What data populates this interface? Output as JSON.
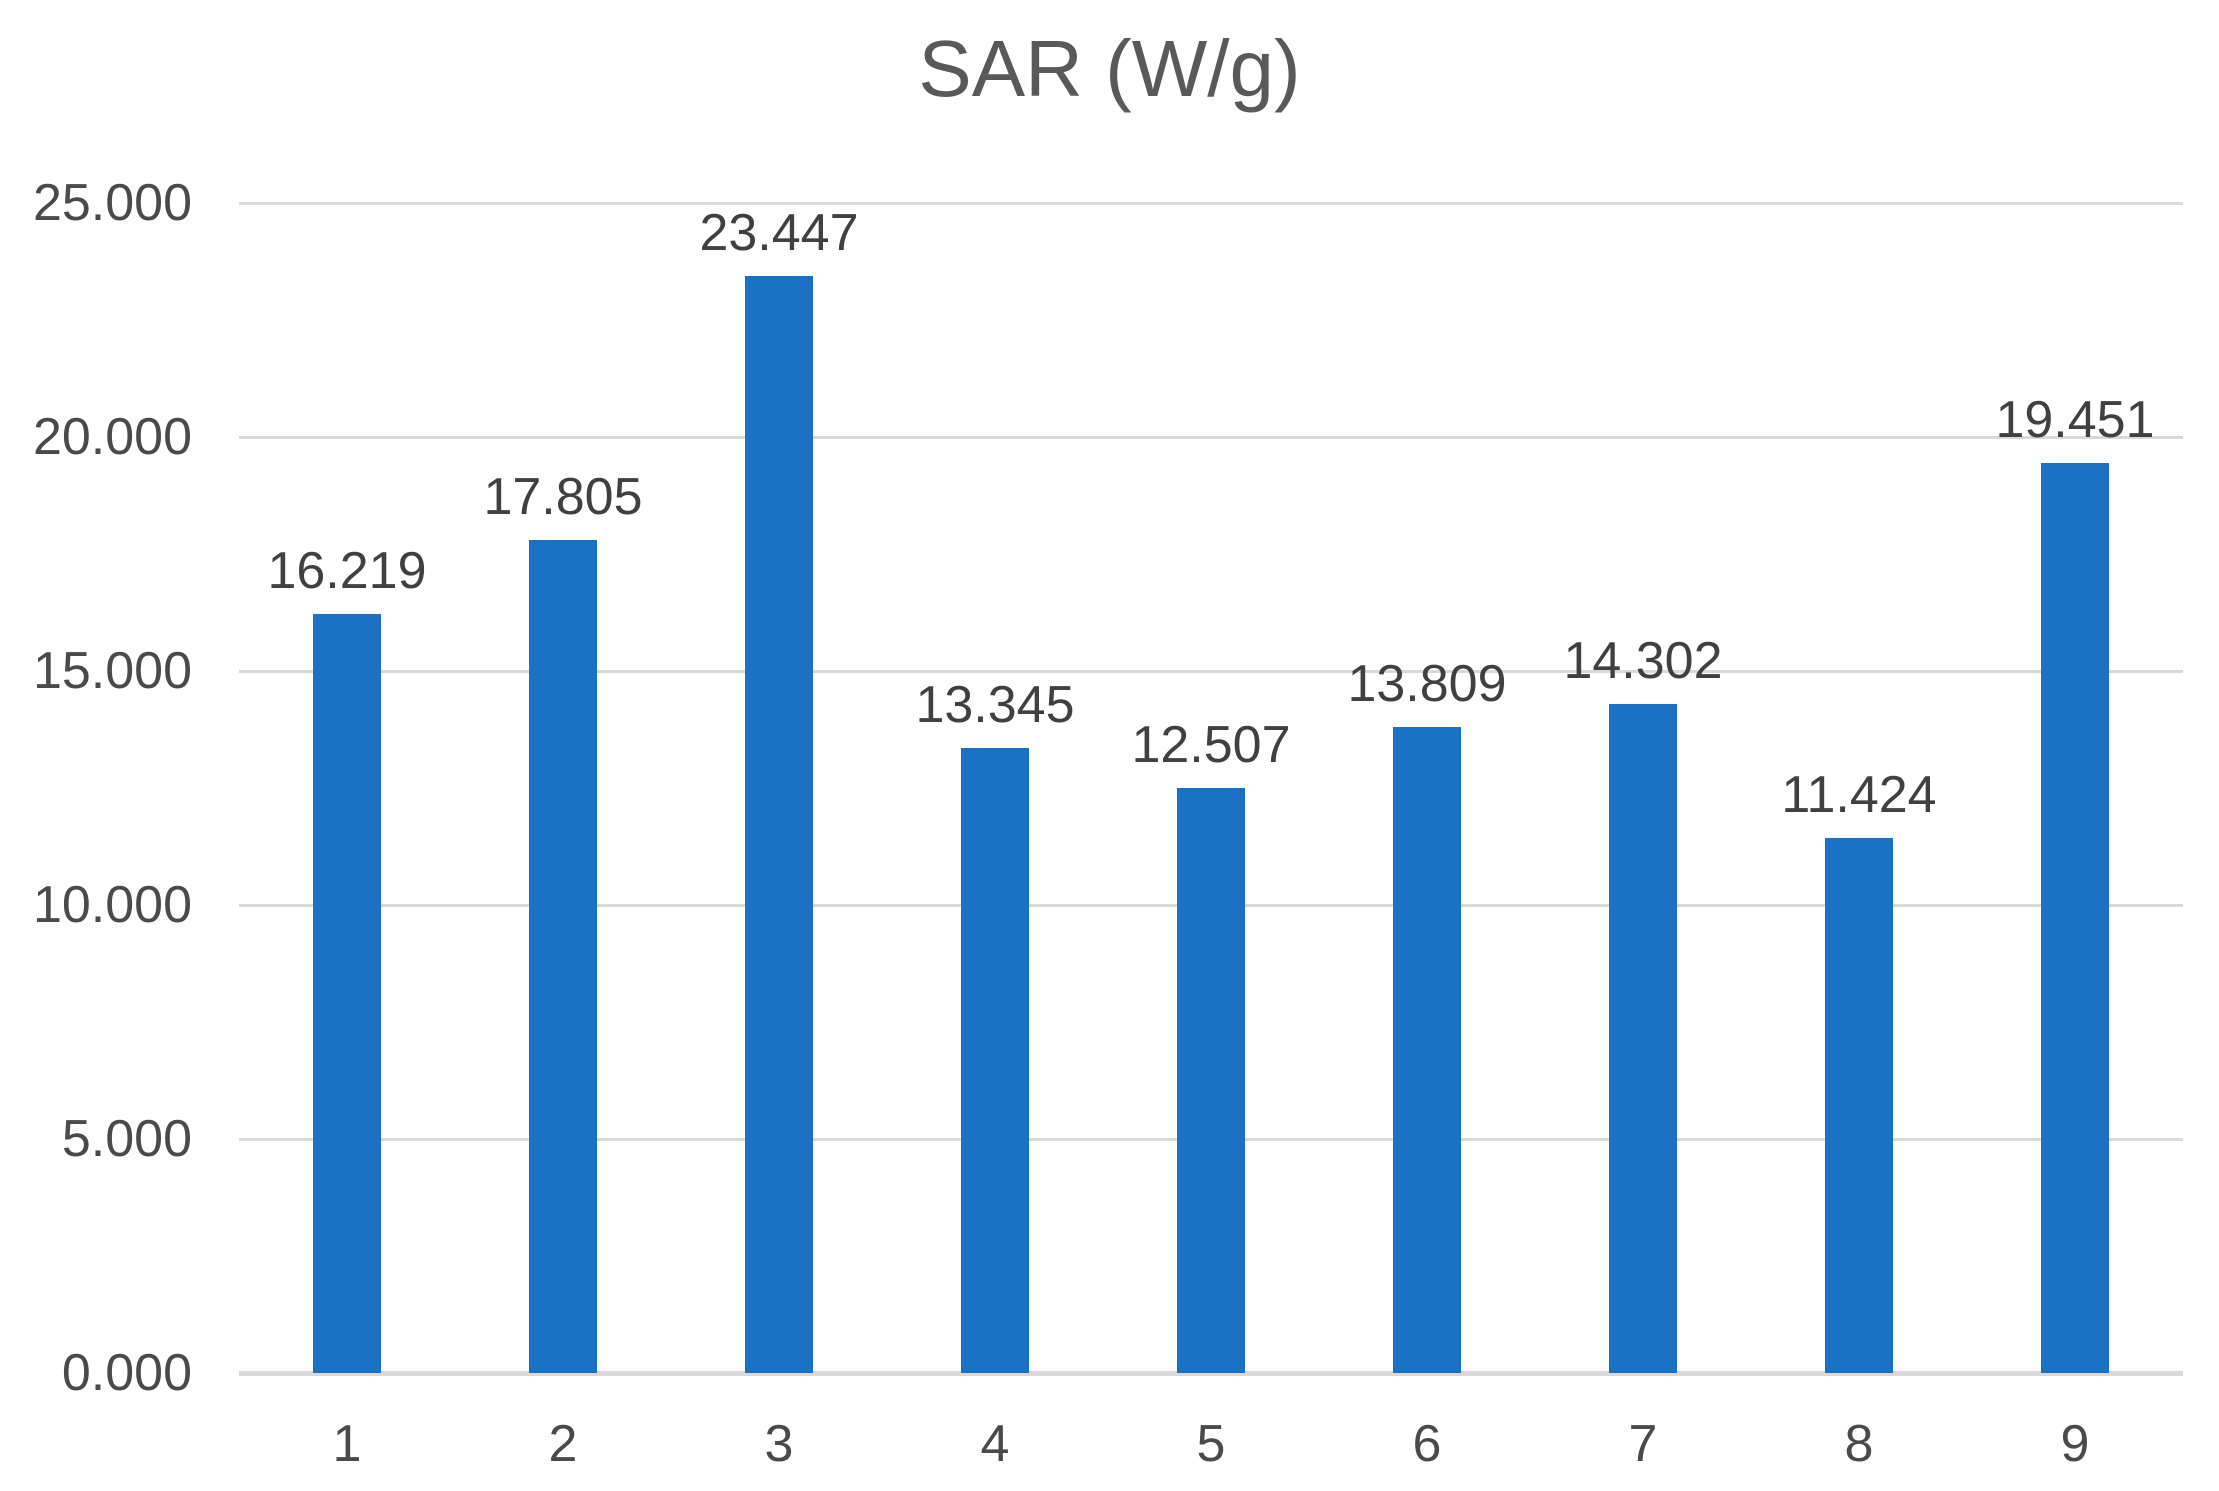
{
  "chart_data": {
    "type": "bar",
    "title": "SAR (W/g)",
    "categories": [
      "1",
      "2",
      "3",
      "4",
      "5",
      "6",
      "7",
      "8",
      "9"
    ],
    "values": [
      16.219,
      17.805,
      23.447,
      13.345,
      12.507,
      13.809,
      14.302,
      11.424,
      19.451
    ],
    "labels": [
      "16.219",
      "17.805",
      "23.447",
      "13.345",
      "12.507",
      "13.809",
      "14.302",
      "11.424",
      "19.451"
    ],
    "xlabel": "",
    "ylabel": "",
    "ylim": [
      0,
      25
    ],
    "y_ticks": [
      {
        "value": 0,
        "label": "0.000"
      },
      {
        "value": 5,
        "label": "5.000"
      },
      {
        "value": 10,
        "label": "10.000"
      },
      {
        "value": 15,
        "label": "15.000"
      },
      {
        "value": 20,
        "label": "20.000"
      },
      {
        "value": 25,
        "label": "25.000"
      }
    ],
    "grid": true,
    "legend": "none"
  },
  "colors": {
    "bar": "#1B72C4",
    "gridline": "#D9D9D9",
    "axis_line": "#D9D9D9",
    "title_text": "#595959",
    "tick_text": "#4A4A4A",
    "data_label_text": "#404040",
    "background": "#FFFFFF"
  }
}
